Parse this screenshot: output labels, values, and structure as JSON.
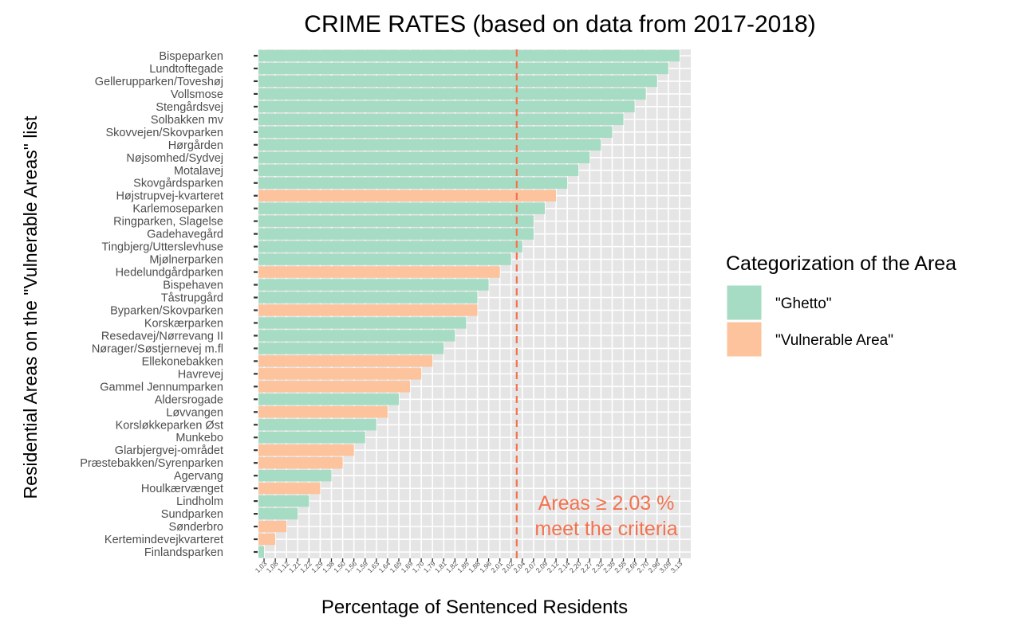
{
  "chart_data": {
    "type": "bar",
    "orientation": "horizontal",
    "title": "CRIME RATES (based on data from 2017-2018)",
    "xlabel": "Percentage of Sentenced Residents",
    "ylabel": "Residential Areas on the \"Vulnerable Areas\" list",
    "x_axis_note": "discrete axis: one tick per distinct value, ticks in ascending order",
    "x_ticks": [
      "1,03",
      "1,08",
      "1,12",
      "1,21",
      "1,22",
      "1,29",
      "1,38",
      "1,50",
      "1,56",
      "1,59",
      "1,63",
      "1,64",
      "1,65",
      "1,69",
      "1,70",
      "1,79",
      "1,81",
      "1,82",
      "1,85",
      "1,88",
      "1,96",
      "2,01",
      "2,02",
      "2,04",
      "2,07",
      "2,09",
      "2,12",
      "2,14",
      "2,20",
      "2,27",
      "2,32",
      "2,35",
      "2,55",
      "2,69",
      "2,70",
      "2,96",
      "3,09",
      "3,13"
    ],
    "categories": [
      "Bispeparken",
      "Lundtoftegade",
      "Gellerupparken/Toveshøj",
      "Vollsmose",
      "Stengårdsvej",
      "Solbakken mv",
      "Skovvejen/Skovparken",
      "Hørgården",
      "Nøjsomhed/Sydvej",
      "Motalavej",
      "Skovgårdsparken",
      "Højstrupvej-kvarteret",
      "Karlemoseparken",
      "Ringparken, Slagelse",
      "Gadehavegård",
      "Tingbjerg/Utterslevhuse",
      "Mjølnerparken",
      "Hedelundgårdparken",
      "Bispehaven",
      "Tåstrupgård",
      "Byparken/Skovparken",
      "Korskærparken",
      "Resedavej/Nørrevang II",
      "Nørager/Søstjernevej m.fl",
      "Ellekonebakken",
      "Havrevej",
      "Gammel Jennumparken",
      "Aldersrogade",
      "Løvvangen",
      "Korsløkkeparken Øst",
      "Munkebo",
      "Glarbjergvej-området",
      "Præstebakken/Syrenparken",
      "Agervang",
      "Houlkærvænget",
      "Lindholm",
      "Sundparken",
      "Sønderbro",
      "Kertemindevejkvarteret",
      "Finlandsparken"
    ],
    "values": [
      3.13,
      3.09,
      2.96,
      2.7,
      2.69,
      2.55,
      2.35,
      2.32,
      2.27,
      2.2,
      2.14,
      2.12,
      2.09,
      2.07,
      2.07,
      2.04,
      2.02,
      2.01,
      1.96,
      1.88,
      1.88,
      1.85,
      1.82,
      1.81,
      1.79,
      1.7,
      1.69,
      1.65,
      1.64,
      1.63,
      1.59,
      1.56,
      1.5,
      1.38,
      1.29,
      1.22,
      1.21,
      1.12,
      1.08,
      1.03
    ],
    "group": [
      "Ghetto",
      "Ghetto",
      "Ghetto",
      "Ghetto",
      "Ghetto",
      "Ghetto",
      "Ghetto",
      "Ghetto",
      "Ghetto",
      "Ghetto",
      "Ghetto",
      "Vulnerable Area",
      "Ghetto",
      "Ghetto",
      "Ghetto",
      "Ghetto",
      "Ghetto",
      "Vulnerable Area",
      "Ghetto",
      "Ghetto",
      "Vulnerable Area",
      "Ghetto",
      "Ghetto",
      "Ghetto",
      "Vulnerable Area",
      "Vulnerable Area",
      "Vulnerable Area",
      "Ghetto",
      "Vulnerable Area",
      "Ghetto",
      "Ghetto",
      "Vulnerable Area",
      "Vulnerable Area",
      "Ghetto",
      "Vulnerable Area",
      "Ghetto",
      "Ghetto",
      "Vulnerable Area",
      "Vulnerable Area",
      "Ghetto"
    ],
    "legend": {
      "title": "Categorization of the Area",
      "position": "right",
      "items": [
        {
          "key": "Ghetto",
          "label": "\"Ghetto\"",
          "color": "#a6dcc3"
        },
        {
          "key": "Vulnerable Area",
          "label": "\"Vulnerable Area\"",
          "color": "#fcc39c"
        }
      ]
    },
    "reference_line": {
      "value": 2.03,
      "color": "#f4724e",
      "style": "dashed",
      "annotation": [
        "Areas ≥ 2.03 %",
        "meet the criteria"
      ]
    },
    "panel_background": "#e5e5e5",
    "grid": true
  }
}
